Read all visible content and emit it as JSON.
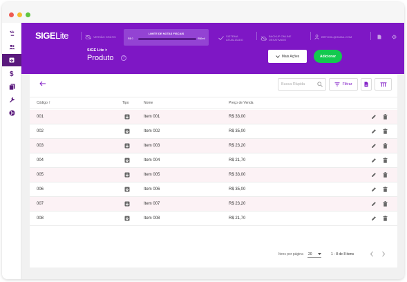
{
  "header": {
    "logo_main": "SIGE",
    "logo_lite": "Lite",
    "version_label": "VERSÃO GRÁTIS",
    "nf_limit": {
      "title": "LIMITE DE NOTAS FISCAIS",
      "min": "R$ 0",
      "max": "R$6mil"
    },
    "system_status": "SISTEMA ATUALIZADO",
    "backup_status": "BACKUP ONLINE DESATIVADO",
    "user_email": "BRFOHIL@GMAIL.COM"
  },
  "breadcrumb": "SIGE Lite  >",
  "page_title": "Produto",
  "help_glyph": "?",
  "actions": {
    "more_label": "Mais Ações",
    "add_label": "Adicionar"
  },
  "toolbar": {
    "search_placeholder": "Busca Rápida",
    "filter_label": "Filtrar"
  },
  "table": {
    "columns": [
      "Código",
      "Tipo",
      "Nome",
      "Preço de Venda"
    ],
    "rows": [
      {
        "code": "001",
        "name": "Item 001",
        "price": "R$ 33,00"
      },
      {
        "code": "002",
        "name": "Item 002",
        "price": "R$ 35,00"
      },
      {
        "code": "003",
        "name": "Item 003",
        "price": "R$ 23,20"
      },
      {
        "code": "004",
        "name": "Item 004",
        "price": "R$ 21,70"
      },
      {
        "code": "005",
        "name": "Item 005",
        "price": "R$ 33,00"
      },
      {
        "code": "006",
        "name": "Item 006",
        "price": "R$ 35,00"
      },
      {
        "code": "007",
        "name": "Item 007",
        "price": "R$ 23,20"
      },
      {
        "code": "008",
        "name": "Item 008",
        "price": "R$ 21,70"
      }
    ]
  },
  "pagination": {
    "items_per_page_label": "Itens por página",
    "page_size": "20",
    "range": "1 - 8 de 8 itens"
  },
  "colors": {
    "brand_purple": "#7e17c5",
    "add_green": "#13c94f",
    "active_sidebar": "#5a1a7d",
    "row_highlight": "#fcf2f5"
  },
  "sidebar": {
    "icons": [
      "spark-icon",
      "users-icon",
      "product-icon",
      "dollar-icon",
      "documents-icon",
      "wrench-icon",
      "radiation-icon"
    ]
  }
}
